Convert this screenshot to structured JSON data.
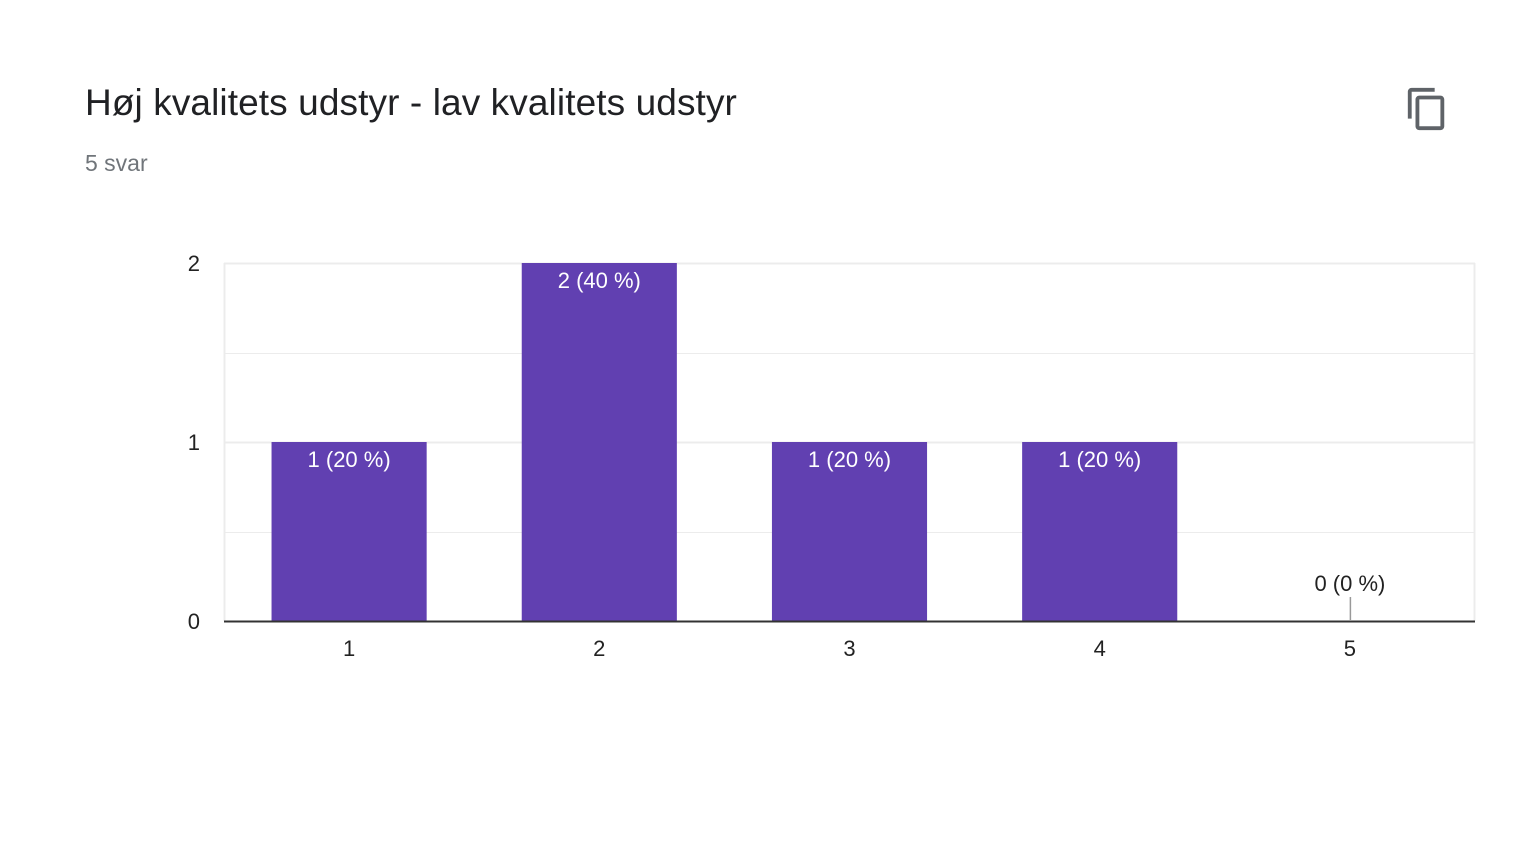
{
  "card": {
    "title": "Høj kvalitets udstyr - lav kvalitets udstyr",
    "subtitle": "5 svar",
    "copy_icon": "copy-icon"
  },
  "colors": {
    "bar": "#6140b1",
    "bar_label_inside": "#ffffff",
    "bar_label_outside": "#222222",
    "grid": "#ececec",
    "axis": "#333333"
  },
  "chart_data": {
    "type": "bar",
    "title": "",
    "xlabel": "",
    "ylabel": "",
    "categories": [
      "1",
      "2",
      "3",
      "4",
      "5"
    ],
    "values": [
      1,
      2,
      1,
      1,
      0
    ],
    "value_labels": [
      "1 (20 %)",
      "2 (40 %)",
      "1 (20 %)",
      "1 (20 %)",
      "0 (0 %)"
    ],
    "ylim": [
      0,
      2
    ],
    "yticks": [
      "0",
      "1",
      "2"
    ],
    "grid": true,
    "legend": "none"
  }
}
